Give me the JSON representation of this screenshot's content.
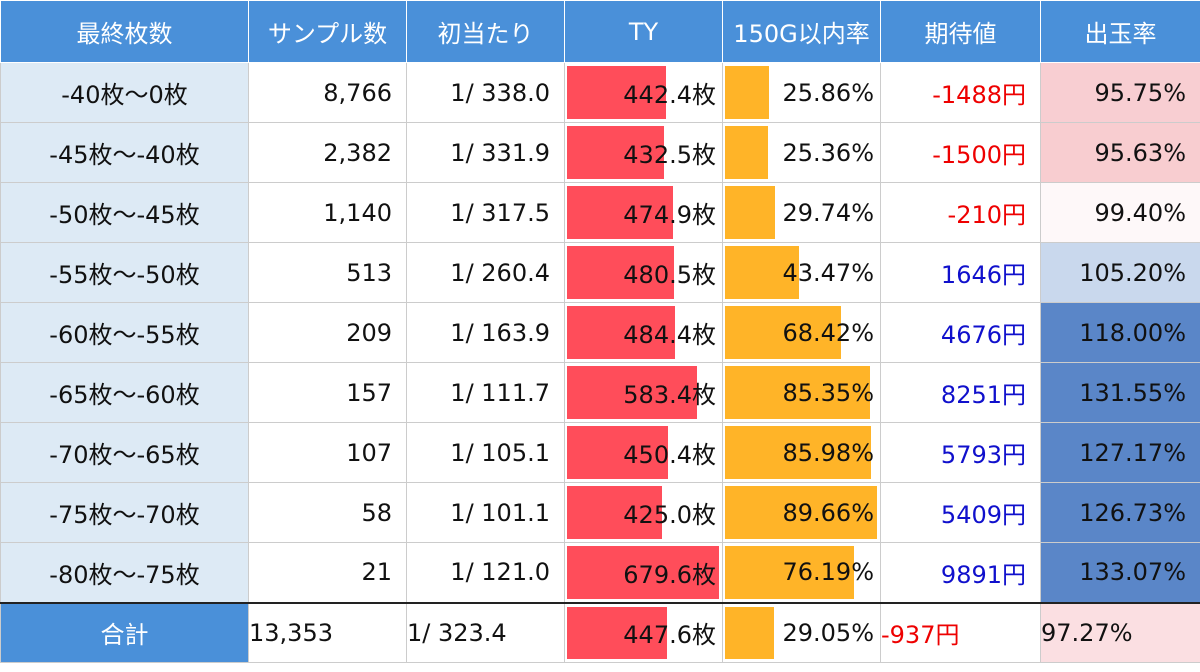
{
  "chart_data": {
    "type": "table",
    "columns": [
      "最終枚数",
      "サンプル数",
      "初当たり",
      "TY",
      "150G以内率",
      "期待値",
      "出玉率"
    ],
    "rows": [
      {
        "label": "-40枚～0枚",
        "samples": "8,766",
        "first_hit": "1/ 338.0",
        "ty": "442.4枚",
        "ty_value": 442.4,
        "rate150": "25.86%",
        "rate150_value": 25.86,
        "ev": "-1488円",
        "ev_value": -1488,
        "payout": "95.75%",
        "payout_value": 95.75
      },
      {
        "label": "-45枚～-40枚",
        "samples": "2,382",
        "first_hit": "1/ 331.9",
        "ty": "432.5枚",
        "ty_value": 432.5,
        "rate150": "25.36%",
        "rate150_value": 25.36,
        "ev": "-1500円",
        "ev_value": -1500,
        "payout": "95.63%",
        "payout_value": 95.63
      },
      {
        "label": "-50枚～-45枚",
        "samples": "1,140",
        "first_hit": "1/ 317.5",
        "ty": "474.9枚",
        "ty_value": 474.9,
        "rate150": "29.74%",
        "rate150_value": 29.74,
        "ev": "-210円",
        "ev_value": -210,
        "payout": "99.40%",
        "payout_value": 99.4
      },
      {
        "label": "-55枚～-50枚",
        "samples": "513",
        "first_hit": "1/ 260.4",
        "ty": "480.5枚",
        "ty_value": 480.5,
        "rate150": "43.47%",
        "rate150_value": 43.47,
        "ev": "1646円",
        "ev_value": 1646,
        "payout": "105.20%",
        "payout_value": 105.2
      },
      {
        "label": "-60枚～-55枚",
        "samples": "209",
        "first_hit": "1/ 163.9",
        "ty": "484.4枚",
        "ty_value": 484.4,
        "rate150": "68.42%",
        "rate150_value": 68.42,
        "ev": "4676円",
        "ev_value": 4676,
        "payout": "118.00%",
        "payout_value": 118.0
      },
      {
        "label": "-65枚～-60枚",
        "samples": "157",
        "first_hit": "1/ 111.7",
        "ty": "583.4枚",
        "ty_value": 583.4,
        "rate150": "85.35%",
        "rate150_value": 85.35,
        "ev": "8251円",
        "ev_value": 8251,
        "payout": "131.55%",
        "payout_value": 131.55
      },
      {
        "label": "-70枚～-65枚",
        "samples": "107",
        "first_hit": "1/ 105.1",
        "ty": "450.4枚",
        "ty_value": 450.4,
        "rate150": "85.98%",
        "rate150_value": 85.98,
        "ev": "5793円",
        "ev_value": 5793,
        "payout": "127.17%",
        "payout_value": 127.17
      },
      {
        "label": "-75枚～-70枚",
        "samples": "58",
        "first_hit": "1/ 101.1",
        "ty": "425.0枚",
        "ty_value": 425.0,
        "rate150": "89.66%",
        "rate150_value": 89.66,
        "ev": "5409円",
        "ev_value": 5409,
        "payout": "126.73%",
        "payout_value": 126.73
      },
      {
        "label": "-80枚～-75枚",
        "samples": "21",
        "first_hit": "1/ 121.0",
        "ty": "679.6枚",
        "ty_value": 679.6,
        "rate150": "76.19%",
        "rate150_value": 76.19,
        "ev": "9891円",
        "ev_value": 9891,
        "payout": "133.07%",
        "payout_value": 133.07
      }
    ],
    "total": {
      "label": "合計",
      "samples": "13,353",
      "first_hit": "1/ 323.4",
      "ty": "447.6枚",
      "ty_value": 447.6,
      "rate150": "29.05%",
      "rate150_value": 29.05,
      "ev": "-937円",
      "ev_value": -937,
      "payout": "97.27%",
      "payout_value": 97.27
    },
    "ty_scale_max": 679.6,
    "rate150_scale_max": 89.66,
    "colors": {
      "header_bg": "#4a90d9",
      "label_bg": "#ddeaf5",
      "ty_bar": "#ff4d5a",
      "rate150_bar": "#ffb428",
      "negative_text": "#ee0000",
      "positive_text": "#1010cc",
      "payout_low": "#f8cbcf",
      "payout_mid": "#ffffff",
      "payout_high": "#5a86c8"
    }
  }
}
